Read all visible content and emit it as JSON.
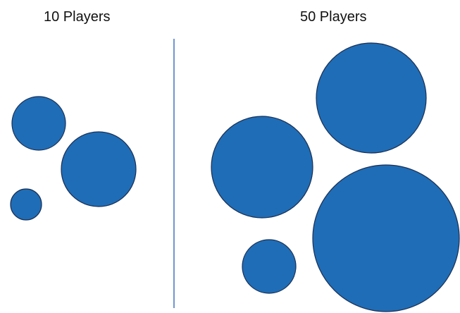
{
  "panels": [
    {
      "title": "10 Players"
    },
    {
      "title": "50 Players"
    }
  ],
  "colors": {
    "circle_fill": "#1f6db6",
    "circle_stroke": "#1a2f55",
    "divider": "#4472c4"
  }
}
